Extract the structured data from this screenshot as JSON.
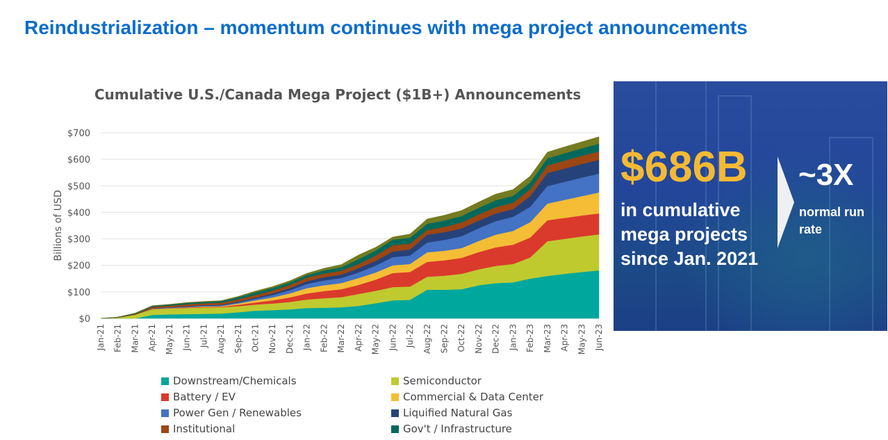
{
  "slide": {
    "title": "Reindustrialization – momentum continues with mega project announcements"
  },
  "chart_data": {
    "type": "area",
    "stacked": true,
    "title": "Cumulative U.S./Canada Mega Project ($1B+) Announcements",
    "xlabel": "",
    "ylabel": "Billions of USD",
    "ylim": [
      0,
      700
    ],
    "yticks": [
      0,
      100,
      200,
      300,
      400,
      500,
      600,
      700
    ],
    "ytick_labels": [
      "$0",
      "$100",
      "$200",
      "$300",
      "$400",
      "$500",
      "$600",
      "$700"
    ],
    "grid": "horizontal",
    "legend_position": "bottom",
    "categories": [
      "Jan-21",
      "Feb-21",
      "Mar-21",
      "Apr-21",
      "May-21",
      "Jun-21",
      "Jul-21",
      "Aug-21",
      "Sep-21",
      "Oct-21",
      "Nov-21",
      "Dec-21",
      "Jan-22",
      "Feb-22",
      "Mar-22",
      "Apr-22",
      "May-22",
      "Jun-22",
      "Jul-22",
      "Aug-22",
      "Sep-22",
      "Oct-22",
      "Nov-22",
      "Dec-22",
      "Jan-23",
      "Feb-23",
      "Mar-23",
      "Apr-23",
      "May-23",
      "Jun-23"
    ],
    "series": [
      {
        "name": "Downstream/Chemicals",
        "color": "#00A79D",
        "values": [
          0,
          0,
          0,
          13,
          15,
          16,
          17,
          18,
          23,
          29,
          31,
          34,
          39,
          40,
          42,
          47,
          57,
          68,
          70,
          108,
          108,
          110,
          125,
          133,
          136,
          150,
          160,
          168,
          175,
          181
        ]
      },
      {
        "name": "Semiconductor",
        "color": "#BFCA2F",
        "values": [
          0,
          3,
          14,
          21,
          22,
          23,
          24,
          24,
          23,
          23,
          25,
          28,
          32,
          36,
          38,
          45,
          47,
          50,
          50,
          49,
          53,
          58,
          60,
          65,
          69,
          80,
          131,
          132,
          134,
          136
        ]
      },
      {
        "name": "Battery / EV",
        "color": "#DA3A2C",
        "values": [
          0,
          0,
          0,
          1,
          1,
          2,
          2,
          2,
          5,
          8,
          12,
          17,
          23,
          27,
          30,
          34,
          42,
          53,
          55,
          56,
          58,
          60,
          65,
          70,
          73,
          75,
          79,
          79,
          79,
          79
        ]
      },
      {
        "name": "Commercial & Data Center",
        "color": "#F5BD35",
        "values": [
          0,
          0,
          0,
          1,
          1,
          1,
          2,
          2,
          5,
          8,
          11,
          15,
          20,
          22,
          23,
          26,
          27,
          29,
          30,
          36,
          36,
          37,
          42,
          48,
          52,
          58,
          63,
          68,
          73,
          79
        ]
      },
      {
        "name": "Power Gen / Renewables",
        "color": "#4472C4",
        "values": [
          0,
          0,
          0,
          1,
          2,
          2,
          3,
          3,
          4,
          6,
          9,
          12,
          16,
          18,
          19,
          21,
          26,
          31,
          32,
          37,
          41,
          45,
          48,
          51,
          53,
          58,
          66,
          68,
          70,
          71
        ]
      },
      {
        "name": "Liquified Natural Gas",
        "color": "#26427A",
        "values": [
          0,
          0,
          0,
          1,
          1,
          2,
          2,
          2,
          3,
          4,
          6,
          8,
          10,
          12,
          13,
          16,
          18,
          21,
          23,
          29,
          29,
          29,
          29,
          29,
          29,
          40,
          49,
          50,
          51,
          52
        ]
      },
      {
        "name": "Institutional",
        "color": "#9C4613",
        "values": [
          0,
          1,
          3,
          6,
          6,
          7,
          7,
          8,
          9,
          10,
          11,
          12,
          14,
          14,
          15,
          16,
          20,
          24,
          22,
          18,
          20,
          23,
          23,
          24,
          24,
          26,
          29,
          30,
          31,
          32
        ]
      },
      {
        "name": "Gov't / Infrastructure",
        "color": "#00695C",
        "values": [
          0,
          1,
          2,
          3,
          4,
          5,
          5,
          6,
          8,
          10,
          10,
          10,
          10,
          12,
          13,
          18,
          19,
          21,
          22,
          24,
          24,
          24,
          25,
          26,
          26,
          26,
          27,
          28,
          28,
          29
        ]
      },
      {
        "color": "#747B20",
        "values": [
          0,
          0,
          1,
          1,
          1,
          2,
          2,
          2,
          3,
          5,
          5,
          6,
          6,
          8,
          10,
          16,
          12,
          10,
          14,
          18,
          20,
          21,
          22,
          23,
          24,
          24,
          23,
          24,
          25,
          26
        ]
      }
    ]
  },
  "callout": {
    "headline": "$686B",
    "subtext": "in cumulative mega projects since Jan. 2021",
    "multiplier": "~3X",
    "multiplier_subtext": "normal run rate",
    "icon": "chevron-right-arrow",
    "headline_color": "#F4BA33"
  }
}
